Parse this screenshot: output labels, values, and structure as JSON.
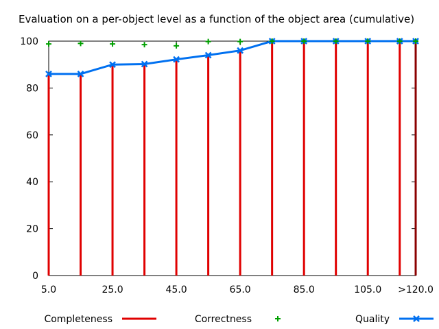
{
  "chart_data": {
    "type": "bar",
    "title": "Evaluation on a per-object level as a function of the object area (cumulative)",
    "xlabel": "",
    "ylabel": "",
    "x_tick_labels": [
      "5.0",
      "25.0",
      "45.0",
      "65.0",
      "85.0",
      "105.0",
      ">120.0"
    ],
    "y_ticks": [
      0,
      20,
      40,
      60,
      80,
      100
    ],
    "ylim": [
      0,
      100
    ],
    "x": [
      5,
      15,
      25,
      35,
      45,
      55,
      65,
      75,
      85,
      95,
      105,
      115,
      120
    ],
    "grid": false,
    "legend_position": "bottom",
    "series": [
      {
        "name": "Completeness",
        "type": "impulse",
        "color": "#e00000",
        "values": [
          86,
          86,
          90,
          90.2,
          92.2,
          94,
          96,
          100,
          100,
          100,
          100,
          100,
          100
        ]
      },
      {
        "name": "Correctness",
        "type": "points",
        "color": "#00a000",
        "values": [
          98.8,
          99,
          98.8,
          98.5,
          98,
          99.8,
          99.8,
          100,
          100,
          100,
          100,
          100,
          100
        ]
      },
      {
        "name": "Quality",
        "type": "linespoints",
        "color": "#0070f0",
        "values": [
          86,
          86,
          90,
          90.2,
          92.2,
          94,
          96,
          100,
          100,
          100,
          100,
          100,
          100
        ]
      }
    ]
  }
}
